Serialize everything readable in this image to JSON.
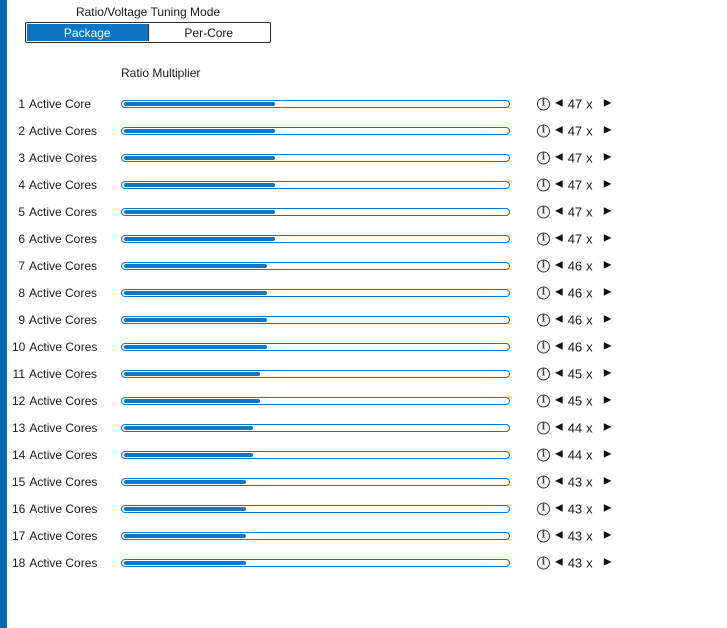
{
  "header": {
    "title": "Ratio/Voltage Tuning Mode",
    "tabs": [
      {
        "label": "Package",
        "selected": true
      },
      {
        "label": "Per-Core",
        "selected": false
      }
    ]
  },
  "section": {
    "column_header": "Ratio Multiplier"
  },
  "controls": {
    "info_glyph": "i",
    "decrease_icon": "◀",
    "increase_icon": "▶",
    "unit": "x"
  },
  "colors": {
    "accent_blue": "#0d76c4",
    "left_bar_blue": "#0668b2",
    "tab_border": "#2b2b2b",
    "text_dark": "#1a1a1a"
  },
  "rows": [
    {
      "num": "1",
      "label": "Active Core",
      "value": "47"
    },
    {
      "num": "2",
      "label": "Active Cores",
      "value": "47"
    },
    {
      "num": "3",
      "label": "Active Cores",
      "value": "47"
    },
    {
      "num": "4",
      "label": "Active Cores",
      "value": "47"
    },
    {
      "num": "5",
      "label": "Active Cores",
      "value": "47"
    },
    {
      "num": "6",
      "label": "Active Cores",
      "value": "47"
    },
    {
      "num": "7",
      "label": "Active Cores",
      "value": "46"
    },
    {
      "num": "8",
      "label": "Active Cores",
      "value": "46"
    },
    {
      "num": "9",
      "label": "Active Cores",
      "value": "46"
    },
    {
      "num": "10",
      "label": "Active Cores",
      "value": "46"
    },
    {
      "num": "11",
      "label": "Active Cores",
      "value": "45"
    },
    {
      "num": "12",
      "label": "Active Cores",
      "value": "45"
    },
    {
      "num": "13",
      "label": "Active Cores",
      "value": "44"
    },
    {
      "num": "14",
      "label": "Active Cores",
      "value": "44"
    },
    {
      "num": "15",
      "label": "Active Cores",
      "value": "43"
    },
    {
      "num": "16",
      "label": "Active Cores",
      "value": "43"
    },
    {
      "num": "17",
      "label": "Active Cores",
      "value": "43"
    },
    {
      "num": "18",
      "label": "Active Cores",
      "value": "43"
    }
  ]
}
